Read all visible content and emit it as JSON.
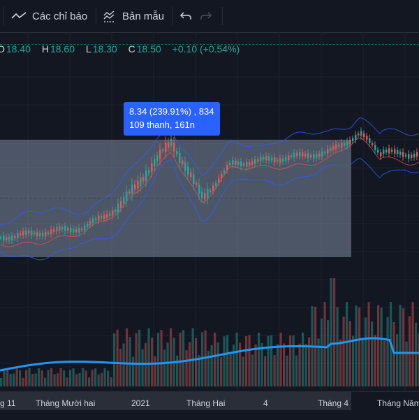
{
  "toolbar": {
    "indicators_label": "Các chỉ báo",
    "templates_label": "Bản mẫu",
    "indicators_icon": "trend-line-icon",
    "templates_icon": "template-chart-icon",
    "undo_icon": "undo-icon",
    "redo_icon": "redo-icon"
  },
  "ohlc": {
    "o_label": "O",
    "o_value": "18.40",
    "h_label": "H",
    "h_value": "18.60",
    "l_label": "L",
    "l_value": "18.30",
    "c_label": "C",
    "c_value": "18.50",
    "change": "+0.10 (+0.54%)"
  },
  "measure_tooltip": {
    "line1": "8.34 (239.91%) , 834",
    "line2": "109 thanh, 161n"
  },
  "x_axis": {
    "ticks": [
      "g 11",
      "Tháng Mười hai",
      "2021",
      "Tháng Hai",
      "4",
      "Tháng 4",
      "Tháng Năm"
    ]
  },
  "colors": {
    "background": "#131722",
    "up": "#26a69a",
    "down": "#ef5350",
    "measure_box": "#7e8aa0",
    "tooltip": "#2962ff",
    "bollinger": "#2962ff",
    "ma": "#ef5350",
    "volume_ma": "#2196f3"
  }
}
